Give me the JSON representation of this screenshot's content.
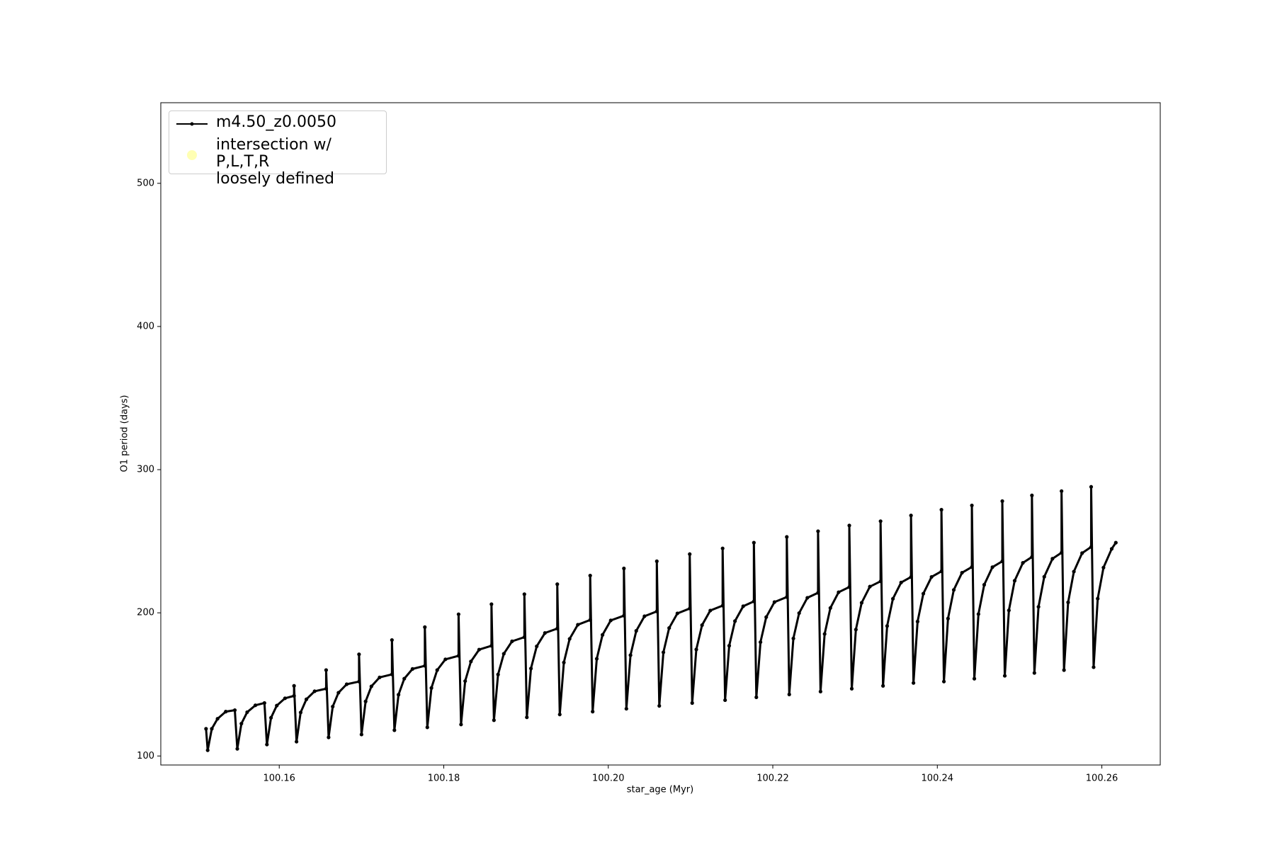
{
  "chart_data": {
    "type": "line",
    "xlabel": "star_age (Myr)",
    "ylabel": "O1 period (days)",
    "xlim": [
      100.1456,
      100.2671
    ],
    "ylim": [
      93.7,
      556.3
    ],
    "xticks": [
      100.16,
      100.18,
      {
        "value": 100.2,
        "label": "100.20"
      },
      100.22,
      100.24,
      100.26
    ],
    "yticks": [
      100,
      200,
      300,
      400,
      500
    ],
    "legend": "upper left",
    "series": [
      {
        "name": "m4.50_z0.0050",
        "color": "#000000",
        "marker": true,
        "x": [
          100.1511,
          100.1513,
          100.1518,
          100.1525,
          100.1535,
          100.1546,
          100.1549,
          100.1554,
          100.1561,
          100.1571,
          100.1582,
          100.1585,
          100.159,
          100.1597,
          100.1607,
          100.1618,
          100.1618,
          100.1621,
          100.1626,
          100.1633,
          100.1643,
          100.1657,
          100.1657,
          100.166,
          100.1665,
          100.1672,
          100.1682,
          100.1697,
          100.1697,
          100.17,
          100.1705,
          100.1712,
          100.1722,
          100.1737,
          100.1737,
          100.174,
          100.1745,
          100.1752,
          100.1762,
          100.1777,
          100.1777,
          100.178,
          100.1785,
          100.1792,
          100.1802,
          100.1818,
          100.1818,
          100.1821,
          100.1826,
          100.1833,
          100.1843,
          100.1858,
          100.1858,
          100.1861,
          100.1866,
          100.1873,
          100.1883,
          100.1898,
          100.1898,
          100.1901,
          100.1906,
          100.1913,
          100.1923,
          100.1938,
          100.1938,
          100.1941,
          100.1946,
          100.1953,
          100.1963,
          100.1978,
          100.1978,
          100.1981,
          100.1986,
          100.1993,
          100.2003,
          100.2019,
          100.2019,
          100.2022,
          100.2027,
          100.2034,
          100.2044,
          100.2059,
          100.2059,
          100.2062,
          100.2067,
          100.2074,
          100.2084,
          100.2099,
          100.2099,
          100.2102,
          100.2107,
          100.2114,
          100.2124,
          100.2139,
          100.2139,
          100.2142,
          100.2147,
          100.2154,
          100.2164,
          100.2177,
          100.2177,
          100.218,
          100.2185,
          100.2192,
          100.2202,
          100.2217,
          100.2217,
          100.222,
          100.2225,
          100.2232,
          100.2242,
          100.2255,
          100.2255,
          100.2258,
          100.2263,
          100.227,
          100.228,
          100.2293,
          100.2293,
          100.2296,
          100.2301,
          100.2308,
          100.2318,
          100.2331,
          100.2331,
          100.2334,
          100.2339,
          100.2346,
          100.2356,
          100.2368,
          100.2368,
          100.2371,
          100.2376,
          100.2383,
          100.2393,
          100.2405,
          100.2405,
          100.2408,
          100.2413,
          100.242,
          100.243,
          100.2442,
          100.2442,
          100.2445,
          100.245,
          100.2457,
          100.2467,
          100.2479,
          100.2479,
          100.2482,
          100.2487,
          100.2494,
          100.2504,
          100.2515,
          100.2515,
          100.2518,
          100.2523,
          100.253,
          100.254,
          100.2551,
          100.2551,
          100.2554,
          100.2559,
          100.2566,
          100.2576,
          100.2587,
          100.2587,
          100.259,
          100.2595,
          100.2602,
          100.2612,
          100.2617
        ],
        "values": [
          119,
          104,
          119,
          126,
          131,
          132,
          105,
          122.6,
          130.6,
          135.4,
          137,
          108,
          126.7,
          135.2,
          140.3,
          142,
          149,
          110,
          130.4,
          139.6,
          145.2,
          147,
          160,
          113,
          134.5,
          144.2,
          150.1,
          152,
          171,
          115,
          138.1,
          148.6,
          154.9,
          157,
          181,
          118,
          142.8,
          154,
          160.8,
          163,
          190,
          120,
          147.5,
          160,
          167.5,
          170,
          199,
          122,
          152.3,
          166,
          174.3,
          177,
          206,
          125,
          156.9,
          171.4,
          180.1,
          183,
          213,
          127,
          161.1,
          176.6,
          185.9,
          189,
          220,
          129,
          165.3,
          181.8,
          191.7,
          195,
          226,
          131,
          167.9,
          184.6,
          194.7,
          198,
          231,
          133,
          170.4,
          187.4,
          197.6,
          201,
          236,
          135,
          172.4,
          189.4,
          199.6,
          203,
          241,
          137,
          174.4,
          191.4,
          201.6,
          205,
          245,
          139,
          177,
          194.2,
          204.6,
          208,
          249,
          141,
          179.5,
          197,
          207.5,
          211,
          253,
          143,
          182.1,
          199.8,
          210.5,
          214,
          257,
          145,
          185.2,
          203.4,
          214.4,
          218,
          261,
          147,
          188.3,
          207,
          218.3,
          222,
          264,
          149,
          190.8,
          209.8,
          221.2,
          225,
          268,
          151,
          193.9,
          213.4,
          225.1,
          229,
          272,
          152,
          196,
          216,
          228,
          232,
          275,
          154,
          199.1,
          219.6,
          231.9,
          236,
          278,
          156,
          201.7,
          222.4,
          234.9,
          239,
          282,
          158,
          204.2,
          225.2,
          237.8,
          242,
          285,
          160,
          207.3,
          228.8,
          241.7,
          246,
          288,
          162,
          209.9,
          231.6,
          244.7,
          249
        ]
      },
      {
        "name": "intersection w/ P,L,T,R\nloosely defined",
        "color": "#ffffb3",
        "marker": true,
        "line": false,
        "x": [],
        "values": []
      }
    ]
  }
}
